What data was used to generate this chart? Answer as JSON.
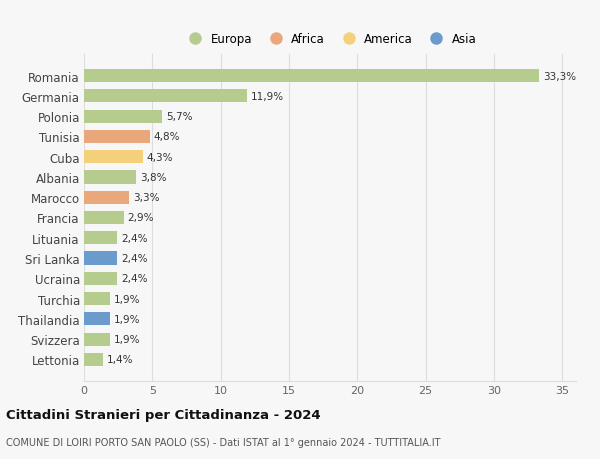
{
  "categories": [
    "Romania",
    "Germania",
    "Polonia",
    "Tunisia",
    "Cuba",
    "Albania",
    "Marocco",
    "Francia",
    "Lituania",
    "Sri Lanka",
    "Ucraina",
    "Turchia",
    "Thailandia",
    "Svizzera",
    "Lettonia"
  ],
  "values": [
    33.3,
    11.9,
    5.7,
    4.8,
    4.3,
    3.8,
    3.3,
    2.9,
    2.4,
    2.4,
    2.4,
    1.9,
    1.9,
    1.9,
    1.4
  ],
  "labels": [
    "33,3%",
    "11,9%",
    "5,7%",
    "4,8%",
    "4,3%",
    "3,8%",
    "3,3%",
    "2,9%",
    "2,4%",
    "2,4%",
    "2,4%",
    "1,9%",
    "1,9%",
    "1,9%",
    "1,4%"
  ],
  "continents": [
    "Europa",
    "Europa",
    "Europa",
    "Africa",
    "America",
    "Europa",
    "Africa",
    "Europa",
    "Europa",
    "Asia",
    "Europa",
    "Europa",
    "Asia",
    "Europa",
    "Europa"
  ],
  "colors": {
    "Europa": "#b5cc8e",
    "Africa": "#e8a87c",
    "America": "#f5d07a",
    "Asia": "#6b9bcc"
  },
  "legend_order": [
    "Europa",
    "Africa",
    "America",
    "Asia"
  ],
  "xlim": [
    0,
    36
  ],
  "xticks": [
    0,
    5,
    10,
    15,
    20,
    25,
    30,
    35
  ],
  "title": "Cittadini Stranieri per Cittadinanza - 2024",
  "subtitle": "COMUNE DI LOIRI PORTO SAN PAOLO (SS) - Dati ISTAT al 1° gennaio 2024 - TUTTITALIA.IT",
  "background_color": "#f7f7f7",
  "grid_color": "#dddddd",
  "bar_height": 0.65
}
